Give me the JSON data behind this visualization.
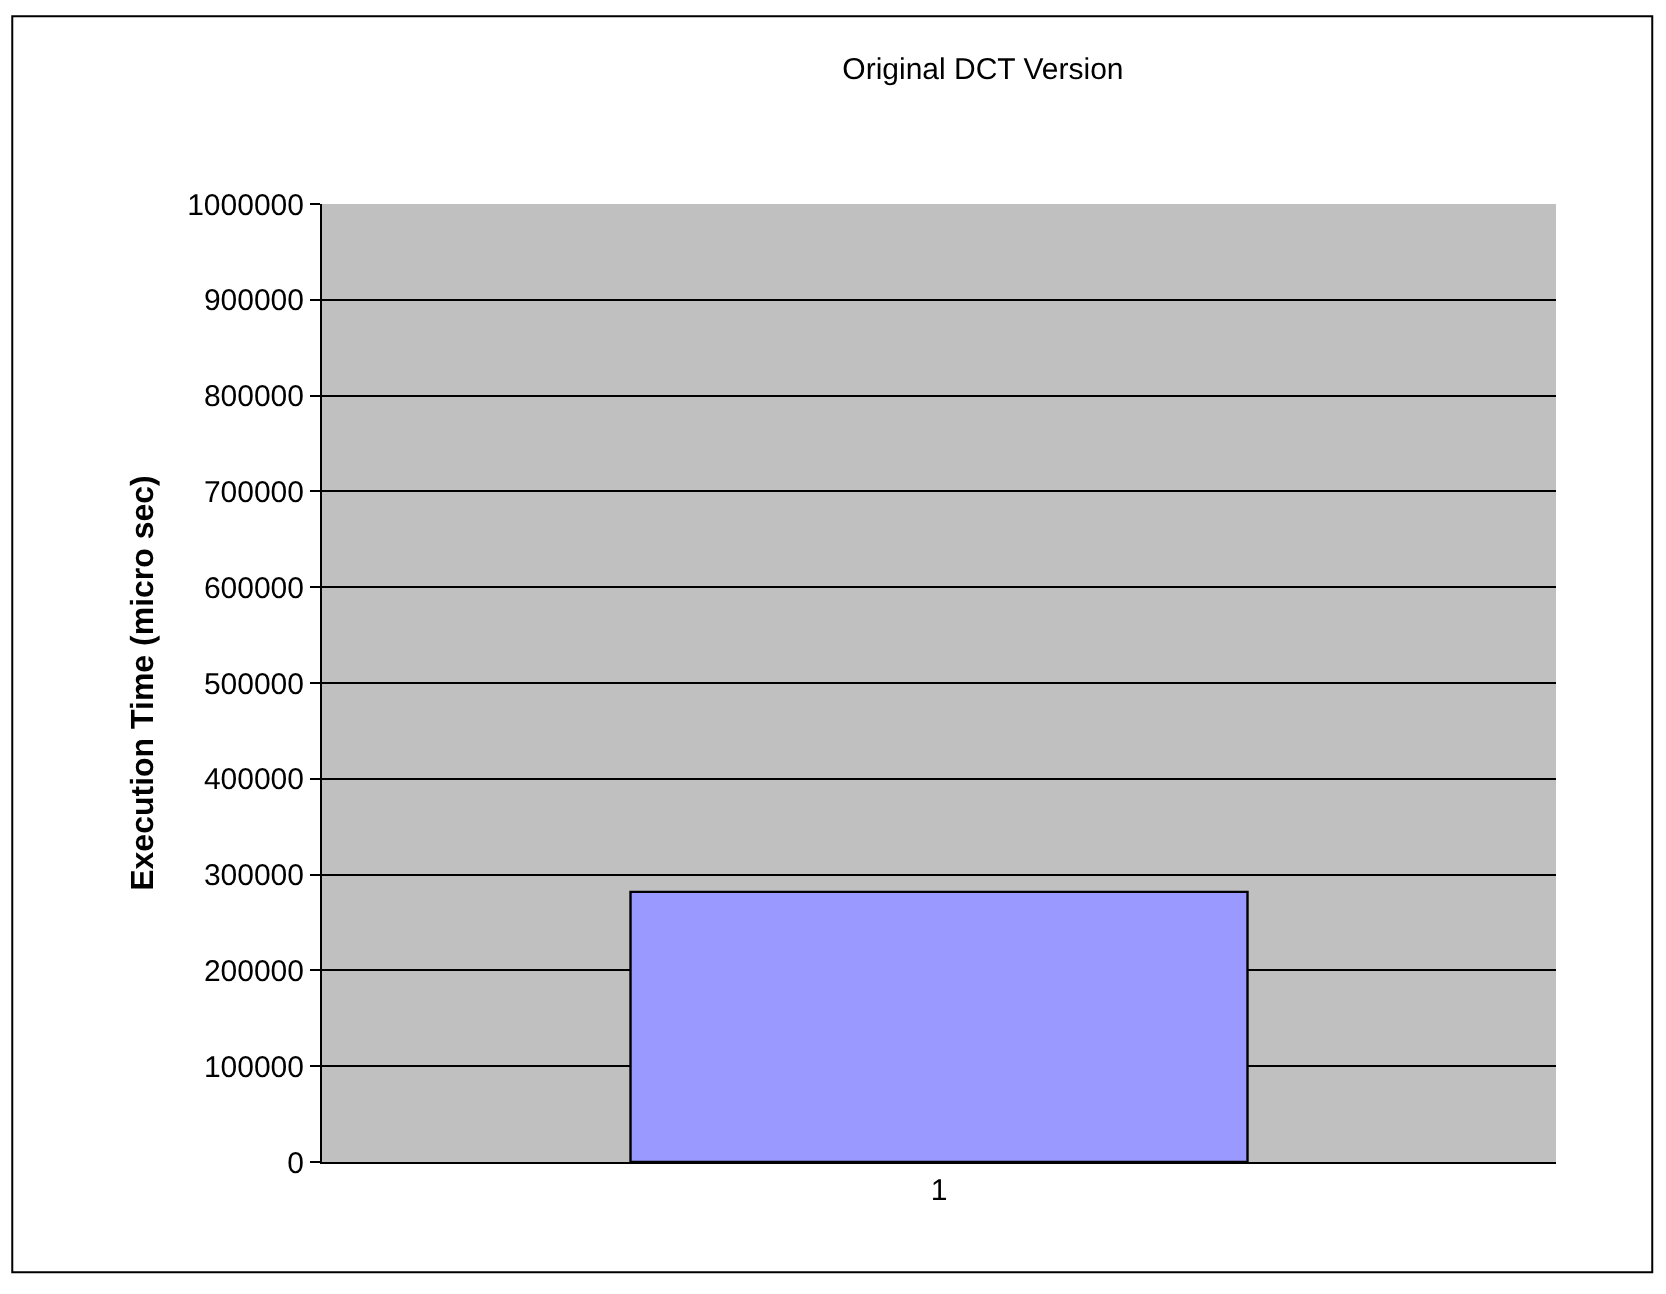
{
  "chart_data": {
    "type": "bar",
    "title": "Original DCT Version",
    "ylabel": "Execution Time (micro sec)",
    "categories": [
      "1"
    ],
    "series": [
      {
        "color": "#9999ff",
        "values": [
          282000
        ]
      }
    ],
    "ylim": [
      0,
      1000000
    ],
    "yticks": [
      0,
      100000,
      200000,
      300000,
      400000,
      500000,
      600000,
      700000,
      800000,
      900000,
      1000000
    ],
    "grid": "y"
  }
}
